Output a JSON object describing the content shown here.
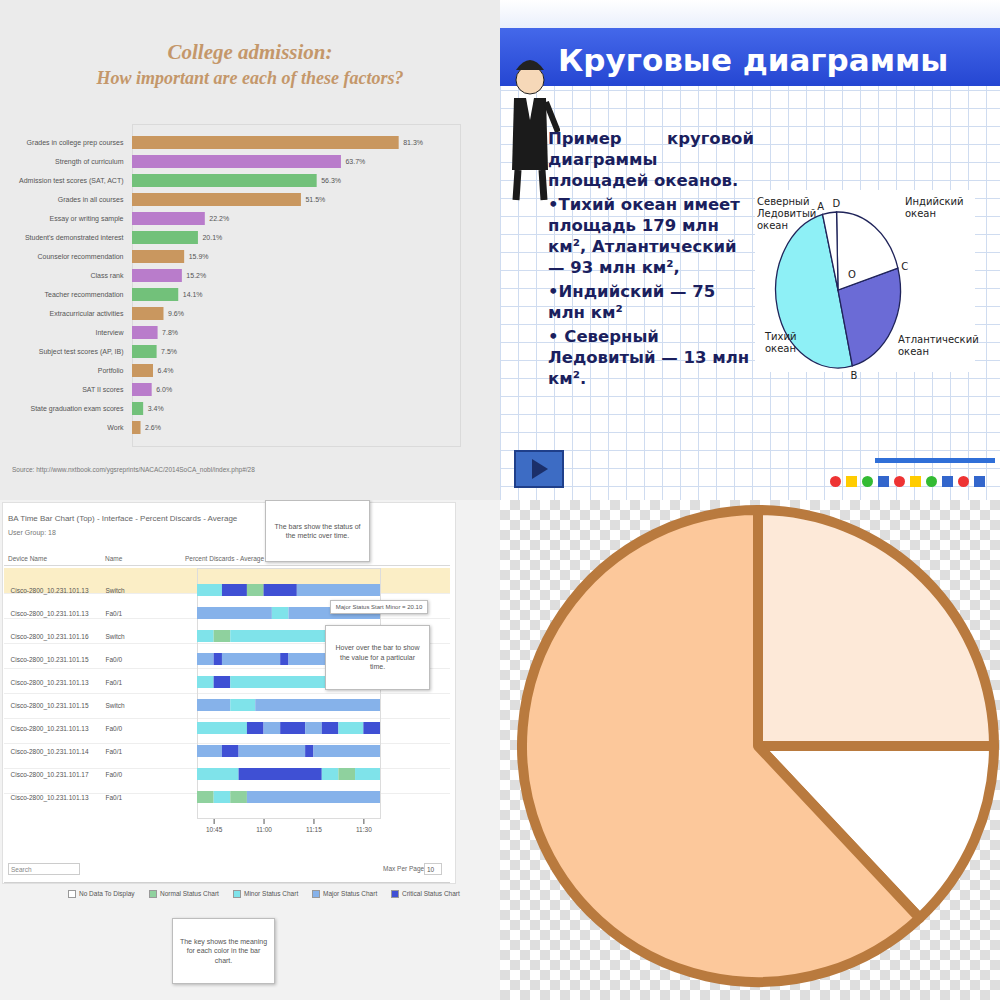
{
  "chart_data": [
    {
      "type": "bar",
      "orientation": "horizontal",
      "title": "College admission:",
      "subtitle": "How important are each of these factors?",
      "categories": [
        "Grades in college prep courses",
        "Strength of curriculum",
        "Admission test scores (SAT, ACT)",
        "Grades in all courses",
        "Essay or writing sample",
        "Student's demonstrated interest",
        "Counselor recommendation",
        "Class rank",
        "Teacher recommendation",
        "Extracurricular activities",
        "Interview",
        "Subject test scores (AP, IB)",
        "Portfolio",
        "SAT II scores",
        "State graduation exam scores",
        "Work"
      ],
      "values": [
        81.3,
        63.7,
        56.3,
        51.5,
        22.2,
        20.1,
        15.9,
        15.2,
        14.1,
        9.6,
        7.8,
        7.5,
        6.4,
        6.0,
        3.4,
        2.6
      ],
      "value_labels": [
        "81.3%",
        "63.7%",
        "56.3%",
        "51.5%",
        "22.2%",
        "20.1%",
        "15.9%",
        "15.2%",
        "14.1%",
        "9.6%",
        "7.8%",
        "7.5%",
        "6.4%",
        "6.0%",
        "3.4%",
        "2.6%"
      ],
      "colors": [
        "#c9975f",
        "#b97ccb",
        "#72c17a",
        "#c9975f",
        "#b97ccb",
        "#72c17a",
        "#c9975f",
        "#b97ccb",
        "#72c17a",
        "#c9975f",
        "#b97ccb",
        "#72c17a",
        "#c9975f",
        "#b97ccb",
        "#72c17a",
        "#c9975f"
      ],
      "xlim": [
        0,
        100
      ],
      "data_labels": true,
      "tick_labels": "y",
      "grid": false,
      "caption": "Source: http://www.nxtbook.com/ygsreprints/NACAC/2014SoCA_nobl/index.php#/28"
    },
    {
      "type": "pie",
      "title": "Круговые диаграммы",
      "subtitle": "Пример круговой диаграммы площадей океанов.",
      "annotations": [
        "•Тихий океан имеет площадь 179 млн км², Атлантический — 93 млн км²,",
        "•Индийский — 75 млн км²",
        "• Северный Ледовитый — 13 млн км²."
      ],
      "categories": [
        "Тихий океан",
        "Атлантический океан",
        "Индийский океан",
        "Северный Ледовитый океан"
      ],
      "values": [
        179,
        93,
        75,
        13
      ],
      "colors": [
        "#8ef0f6",
        "#6b6bd6",
        "#ffffff",
        "#ffffff"
      ],
      "point_labels": [
        "A",
        "B",
        "C",
        "D",
        "O"
      ]
    },
    {
      "type": "timeline",
      "title": "BA Time Bar Chart (Top) - Interface - Percent Discards - Average",
      "subtitle": "User Group: 18",
      "columns": [
        "Device Name",
        "Name",
        "Percent Discards - Average"
      ],
      "rows": [
        {
          "device": "Cisco-2800_10.231.101.13",
          "name": "Switch",
          "segments": [
            {
              "status": "Minor Status Chart",
              "start": 0,
              "end": 3
            },
            {
              "status": "Critical Status Chart",
              "start": 3,
              "end": 6
            },
            {
              "status": "Normal Status Chart",
              "start": 6,
              "end": 8
            },
            {
              "status": "Critical Status Chart",
              "start": 8,
              "end": 12
            },
            {
              "status": "Major Status Chart",
              "start": 12,
              "end": 22
            }
          ]
        },
        {
          "device": "Cisco-2800_10.231.101.13",
          "name": "Fa0/1",
          "segments": [
            {
              "status": "Major Status Chart",
              "start": 0,
              "end": 9
            },
            {
              "status": "Minor Status Chart",
              "start": 9,
              "end": 11
            },
            {
              "status": "Major Status Chart",
              "start": 11,
              "end": 22
            }
          ]
        },
        {
          "device": "Cisco-2800_10.231.101.16",
          "name": "Switch",
          "segments": [
            {
              "status": "Minor Status Chart",
              "start": 0,
              "end": 2
            },
            {
              "status": "Normal Status Chart",
              "start": 2,
              "end": 4
            },
            {
              "status": "Minor Status Chart",
              "start": 4,
              "end": 22
            }
          ]
        },
        {
          "device": "Cisco-2800_10.231.101.15",
          "name": "Fa0/0",
          "segments": [
            {
              "status": "Major Status Chart",
              "start": 0,
              "end": 2
            },
            {
              "status": "Critical Status Chart",
              "start": 2,
              "end": 3
            },
            {
              "status": "Major Status Chart",
              "start": 3,
              "end": 10
            },
            {
              "status": "Critical Status Chart",
              "start": 10,
              "end": 11
            },
            {
              "status": "Major Status Chart",
              "start": 11,
              "end": 22
            }
          ]
        },
        {
          "device": "Cisco-2800_10.231.101.13",
          "name": "Fa0/1",
          "segments": [
            {
              "status": "Minor Status Chart",
              "start": 0,
              "end": 2
            },
            {
              "status": "Critical Status Chart",
              "start": 2,
              "end": 4
            },
            {
              "status": "Minor Status Chart",
              "start": 4,
              "end": 22
            }
          ]
        },
        {
          "device": "Cisco-2800_10.231.101.15",
          "name": "Switch",
          "segments": [
            {
              "status": "Major Status Chart",
              "start": 0,
              "end": 4
            },
            {
              "status": "Minor Status Chart",
              "start": 4,
              "end": 7
            },
            {
              "status": "Major Status Chart",
              "start": 7,
              "end": 22
            }
          ]
        },
        {
          "device": "Cisco-2800_10.231.101.13",
          "name": "Fa0/0",
          "segments": [
            {
              "status": "Minor Status Chart",
              "start": 0,
              "end": 6
            },
            {
              "status": "Critical Status Chart",
              "start": 6,
              "end": 8
            },
            {
              "status": "Major Status Chart",
              "start": 8,
              "end": 10
            },
            {
              "status": "Critical Status Chart",
              "start": 10,
              "end": 13
            },
            {
              "status": "Major Status Chart",
              "start": 13,
              "end": 15
            },
            {
              "status": "Critical Status Chart",
              "start": 15,
              "end": 17
            },
            {
              "status": "Minor Status Chart",
              "start": 17,
              "end": 20
            },
            {
              "status": "Critical Status Chart",
              "start": 20,
              "end": 22
            }
          ]
        },
        {
          "device": "Cisco-2800_10.231.101.14",
          "name": "Fa0/1",
          "segments": [
            {
              "status": "Major Status Chart",
              "start": 0,
              "end": 3
            },
            {
              "status": "Critical Status Chart",
              "start": 3,
              "end": 5
            },
            {
              "status": "Major Status Chart",
              "start": 5,
              "end": 13
            },
            {
              "status": "Critical Status Chart",
              "start": 13,
              "end": 14
            },
            {
              "status": "Major Status Chart",
              "start": 14,
              "end": 22
            }
          ]
        },
        {
          "device": "Cisco-2800_10.231.101.17",
          "name": "Fa0/0",
          "segments": [
            {
              "status": "Minor Status Chart",
              "start": 0,
              "end": 5
            },
            {
              "status": "Critical Status Chart",
              "start": 5,
              "end": 15
            },
            {
              "status": "Minor Status Chart",
              "start": 15,
              "end": 17
            },
            {
              "status": "Normal Status Chart",
              "start": 17,
              "end": 19
            },
            {
              "status": "Minor Status Chart",
              "start": 19,
              "end": 22
            }
          ]
        },
        {
          "device": "Cisco-2800_10.231.101.13",
          "name": "Fa0/1",
          "segments": [
            {
              "status": "Normal Status Chart",
              "start": 0,
              "end": 2
            },
            {
              "status": "Minor Status Chart",
              "start": 2,
              "end": 4
            },
            {
              "status": "Normal Status Chart",
              "start": 4,
              "end": 6
            },
            {
              "status": "Major Status Chart",
              "start": 6,
              "end": 22
            }
          ]
        }
      ],
      "series": [
        {
          "name": "No Data To Display",
          "color": "#ffffff"
        },
        {
          "name": "Normal Status Chart",
          "color": "#8fd19e"
        },
        {
          "name": "Minor Status Chart",
          "color": "#7fe3ea"
        },
        {
          "name": "Major Status Chart",
          "color": "#86b2ea"
        },
        {
          "name": "Critical Status Chart",
          "color": "#3f50d4"
        }
      ],
      "xlim": [
        0,
        22
      ],
      "xticks": [
        {
          "value": 2,
          "label": "10:45"
        },
        {
          "value": 8,
          "label": "11:00"
        },
        {
          "value": 14,
          "label": "11:15"
        },
        {
          "value": 20,
          "label": "11:30"
        }
      ],
      "annotations": [
        "The bars show the status of the metric over time.",
        "Major Status Start Minor = 20.10",
        "Hover over the bar to show the value for a particular time.",
        "The key shows the meaning for each color in the bar chart."
      ],
      "search_label": "Search",
      "page_size_label": "Max Per Page:",
      "page_size": 10
    },
    {
      "type": "pie",
      "categories": [
        null,
        null,
        null
      ],
      "values": [
        25,
        13,
        62
      ],
      "colors": [
        "#fde9d8",
        "#ffffff",
        "#fcc89b"
      ],
      "tick_labels": false
    }
  ]
}
